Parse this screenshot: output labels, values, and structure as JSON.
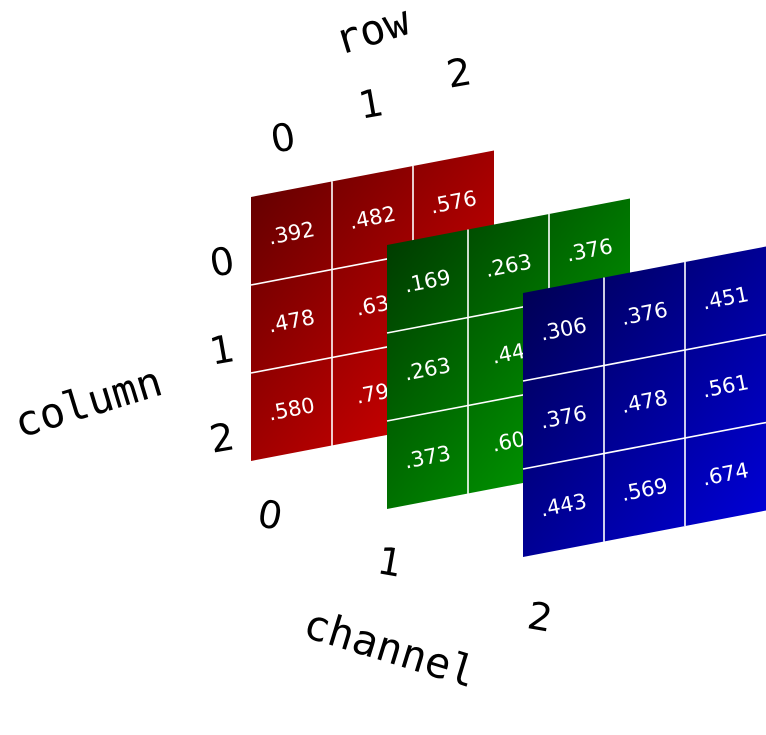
{
  "axis_titles": {
    "row": "row",
    "column": "column",
    "channel": "channel"
  },
  "row_indices": [
    "0",
    "1",
    "2"
  ],
  "column_indices": [
    "0",
    "1",
    "2"
  ],
  "channel_indices": [
    "0",
    "1",
    "2"
  ],
  "channels": [
    {
      "name": "red",
      "values": [
        [
          ".392",
          ".482",
          ".576"
        ],
        [
          ".478",
          ".63",
          ""
        ],
        [
          ".580",
          ".79",
          ""
        ]
      ],
      "colors": {
        "top_left": "#5c0000",
        "bottom_right": "#e60000"
      }
    },
    {
      "name": "green",
      "values": [
        [
          ".169",
          ".263",
          ".376"
        ],
        [
          ".263",
          ".44",
          ""
        ],
        [
          ".373",
          ".60",
          ""
        ]
      ],
      "colors": {
        "top_left": "#003300",
        "bottom_right": "#00b000"
      }
    },
    {
      "name": "blue",
      "values": [
        [
          ".306",
          ".376",
          ".451"
        ],
        [
          ".376",
          ".478",
          ".561"
        ],
        [
          ".443",
          ".569",
          ".674"
        ]
      ],
      "colors": {
        "top_left": "#00004a",
        "bottom_right": "#0000e0"
      }
    }
  ],
  "grid_line_color": "#ffffff"
}
